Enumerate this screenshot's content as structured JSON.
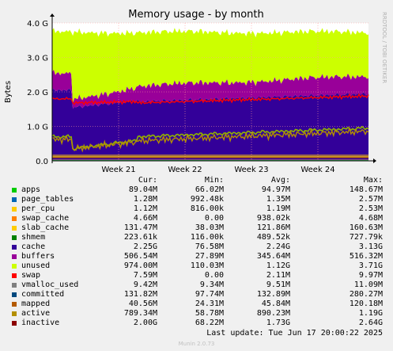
{
  "chart_data": {
    "type": "area",
    "title": "Memory usage - by month",
    "ylabel": "Bytes",
    "xlabel": "",
    "ylim": [
      0,
      4000000000
    ],
    "y_ticks": [
      "0.0",
      "1.0 G",
      "2.0 G",
      "3.0 G",
      "4.0 G"
    ],
    "x_ticks": [
      "Week 21",
      "Week 22",
      "Week 23",
      "Week 24"
    ],
    "grid": true,
    "side_label": "RRDTOOL / TOBI OETIKER",
    "columns": [
      "Cur:",
      "Min:",
      "Avg:",
      "Max:"
    ],
    "series": [
      {
        "name": "apps",
        "color": "#00cc00",
        "cur": "89.04M",
        "min": "66.02M",
        "avg": "94.97M",
        "max": "148.67M"
      },
      {
        "name": "page_tables",
        "color": "#0066b3",
        "cur": "1.28M",
        "min": "992.48k",
        "avg": "1.35M",
        "max": "2.57M"
      },
      {
        "name": "per_cpu",
        "color": "#ff8000",
        "cur": "1.12M",
        "min": "816.00k",
        "avg": "1.19M",
        "max": "2.53M"
      },
      {
        "name": "swap_cache",
        "color": "#ffcc00",
        "cur": "4.66M",
        "min": "0.00",
        "avg": "938.02k",
        "max": "4.68M"
      },
      {
        "name": "slab_cache",
        "color": "#330099",
        "cur": "131.47M",
        "min": "38.03M",
        "avg": "121.86M",
        "max": "160.63M"
      },
      {
        "name": "shmem",
        "color": "#990099",
        "cur": "223.61k",
        "min": "116.00k",
        "avg": "489.52k",
        "max": "727.79k"
      },
      {
        "name": "cache",
        "color": "#ccff00",
        "cur": "2.25G",
        "min": "76.58M",
        "avg": "2.24G",
        "max": "3.13G"
      },
      {
        "name": "buffers",
        "color": "#ff0000",
        "cur": "506.54M",
        "min": "27.89M",
        "avg": "345.64M",
        "max": "516.32M"
      },
      {
        "name": "unused",
        "color": "#808080",
        "cur": "974.00M",
        "min": "110.03M",
        "avg": "1.12G",
        "max": "3.71G"
      },
      {
        "name": "swap",
        "color": "#008f00",
        "cur": "7.59M",
        "min": "0.00",
        "avg": "2.11M",
        "max": "9.97M"
      },
      {
        "name": "vmalloc_used",
        "color": "#00487d",
        "cur": "9.42M",
        "min": "9.34M",
        "avg": "9.51M",
        "max": "11.09M"
      },
      {
        "name": "committed",
        "color": "#b35a00",
        "cur": "131.82M",
        "min": "97.74M",
        "avg": "132.89M",
        "max": "280.27M"
      },
      {
        "name": "mapped",
        "color": "#b38f00",
        "cur": "40.56M",
        "min": "24.31M",
        "avg": "45.84M",
        "max": "120.18M"
      },
      {
        "name": "active",
        "color": "#6b006b",
        "cur": "789.34M",
        "min": "58.78M",
        "avg": "890.23M",
        "max": "1.19G"
      },
      {
        "name": "inactive",
        "color": "#8fb300",
        "cur": "2.00G",
        "min": "68.22M",
        "avg": "1.73G",
        "max": "2.64G"
      }
    ],
    "legend_swatches": [
      "#00cc00",
      "#0066b3",
      "#ffcc00",
      "#ff8000",
      "#ffcc00",
      "#008000",
      "#330099",
      "#990099",
      "#ccff00",
      "#ff0000",
      "#808080",
      "#00487d",
      "#b35a00",
      "#b38f00",
      "#8b0000"
    ]
  },
  "footer": {
    "last_update": "Last update: Tue Jun 17 20:00:22 2025",
    "munin": "Munin 2.0.73"
  }
}
